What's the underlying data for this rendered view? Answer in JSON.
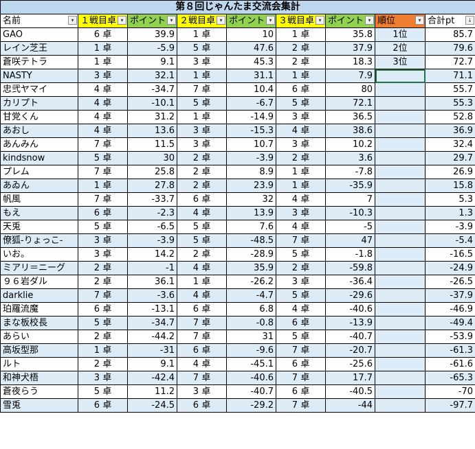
{
  "title": "第８回じゃんたま交流会集計",
  "headers": [
    {
      "label": "名前",
      "color": "white"
    },
    {
      "label": "１戦目卓",
      "color": "yellow"
    },
    {
      "label": "ポイント",
      "color": "green"
    },
    {
      "label": "２戦目卓",
      "color": "yellow"
    },
    {
      "label": "ポイント",
      "color": "green"
    },
    {
      "label": "３戦目卓",
      "color": "yellow"
    },
    {
      "label": "ポイント",
      "color": "green"
    },
    {
      "label": "順位",
      "color": "orange"
    },
    {
      "label": "合計pt",
      "color": "white"
    }
  ],
  "sort_indicator": "↓",
  "filter_icon": "▾",
  "rows": [
    [
      "GAO",
      "6 卓",
      "39.9",
      "1 卓",
      "10",
      "1 卓",
      "35.8",
      "1位",
      "85.7"
    ],
    [
      "レイン芝王",
      "1 卓",
      "-5.9",
      "5 卓",
      "47.6",
      "2 卓",
      "37.9",
      "2位",
      "79.6"
    ],
    [
      "蒼咲テトラ",
      "1 卓",
      "9.1",
      "3 卓",
      "45.3",
      "2 卓",
      "18.3",
      "3位",
      "72.7"
    ],
    [
      "NASTY",
      "3 卓",
      "32.1",
      "1 卓",
      "31.1",
      "1 卓",
      "7.9",
      "",
      "71.1"
    ],
    [
      "忠弐ヤマイ",
      "4 卓",
      "-34.7",
      "7 卓",
      "10.4",
      "6 卓",
      "80",
      "",
      "55.7"
    ],
    [
      "カリプト",
      "4 卓",
      "-10.1",
      "5 卓",
      "-6.7",
      "5 卓",
      "72.1",
      "",
      "55.3"
    ],
    [
      "甘党くん",
      "4 卓",
      "31.2",
      "1 卓",
      "-14.9",
      "3 卓",
      "36.5",
      "",
      "52.8"
    ],
    [
      "あおし",
      "4 卓",
      "13.6",
      "3 卓",
      "-15.3",
      "4 卓",
      "38.6",
      "",
      "36.9"
    ],
    [
      "あんみん",
      "7 卓",
      "11.5",
      "3 卓",
      "10.7",
      "3 卓",
      "10.2",
      "",
      "32.4"
    ],
    [
      "kindsnow",
      "5 卓",
      "30",
      "2 卓",
      "-3.9",
      "2 卓",
      "3.6",
      "",
      "29.7"
    ],
    [
      "プレム",
      "7 卓",
      "25.8",
      "2 卓",
      "8.9",
      "1 卓",
      "-7.8",
      "",
      "26.9"
    ],
    [
      "あゐん",
      "1 卓",
      "27.8",
      "2 卓",
      "23.9",
      "1 卓",
      "-35.9",
      "",
      "15.8"
    ],
    [
      "帆風",
      "7 卓",
      "-33.7",
      "6 卓",
      "32",
      "4 卓",
      "7",
      "",
      "5.3"
    ],
    [
      "もえ",
      "6 卓",
      "-2.3",
      "4 卓",
      "13.9",
      "3 卓",
      "-10.3",
      "",
      "1.3"
    ],
    [
      "天兎",
      "5 卓",
      "-6.5",
      "5 卓",
      "7.6",
      "4 卓",
      "-5",
      "",
      "-3.9"
    ],
    [
      "僚狐-りょっこ-",
      "3 卓",
      "-3.9",
      "5 卓",
      "-48.5",
      "7 卓",
      "47",
      "",
      "-5.4"
    ],
    [
      "いお。",
      "3 卓",
      "14.2",
      "2 卓",
      "-28.9",
      "5 卓",
      "-1.8",
      "",
      "-16.5"
    ],
    [
      "ミアリ＝ニーグ",
      "2 卓",
      "-1",
      "4 卓",
      "35.9",
      "2 卓",
      "-59.8",
      "",
      "-24.9"
    ],
    [
      "９６岩ダル",
      "2 卓",
      "36.1",
      "1 卓",
      "-26.2",
      "3 卓",
      "-36.4",
      "",
      "-26.5"
    ],
    [
      "darklie",
      "7 卓",
      "-3.6",
      "4 卓",
      "-4.7",
      "5 卓",
      "-29.6",
      "",
      "-37.9"
    ],
    [
      "珀羅流魔",
      "6 卓",
      "-13.1",
      "6 卓",
      "6.8",
      "4 卓",
      "-40.6",
      "",
      "-46.9"
    ],
    [
      "まな板校長",
      "5 卓",
      "-34.7",
      "7 卓",
      "-0.8",
      "6 卓",
      "-13.9",
      "",
      "-49.4"
    ],
    [
      "あらい",
      "2 卓",
      "-44.2",
      "7 卓",
      "31",
      "5 卓",
      "-40.7",
      "",
      "-53.9"
    ],
    [
      "高坂型那",
      "1 卓",
      "-31",
      "6 卓",
      "-9.6",
      "7 卓",
      "-20.7",
      "",
      "-61.3"
    ],
    [
      "ルト",
      "2 卓",
      "9.1",
      "4 卓",
      "-45.1",
      "6 卓",
      "-25.6",
      "",
      "-61.6"
    ],
    [
      "和神犬梧",
      "3 卓",
      "-42.4",
      "7 卓",
      "-40.6",
      "7 卓",
      "17.7",
      "",
      "-65.3"
    ],
    [
      "蒼夜らう",
      "5 卓",
      "11.2",
      "3 卓",
      "-40.7",
      "6 卓",
      "-40.5",
      "",
      "-70"
    ],
    [
      "雪兎",
      "6 卓",
      "-24.5",
      "6 卓",
      "-29.2",
      "7 卓",
      "-44",
      "",
      "-97.7"
    ]
  ]
}
